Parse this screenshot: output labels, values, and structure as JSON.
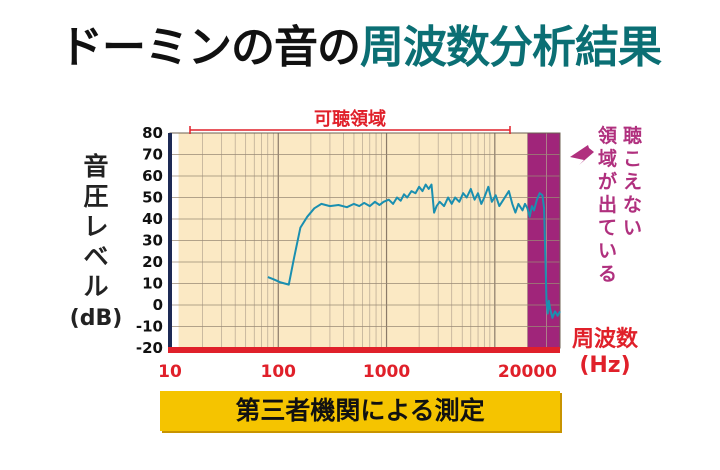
{
  "title": {
    "part1": "ドーミンの音の",
    "part2": "周波数分析結果"
  },
  "banner": "第三者機関による測定",
  "annotation": {
    "line1": "聴こえない",
    "line2": "領域が出ている"
  },
  "colors": {
    "audible_band": "#fbe9c4",
    "inaudible_band": "#a0257a",
    "line": "#1a8fb0",
    "axis_red": "#e0202a",
    "title_teal": "#0b6f74",
    "annotation": "#b0307e",
    "banner": "#f5c400"
  },
  "chart_data": {
    "type": "line",
    "x_scale": "log",
    "xlim": [
      10,
      40000
    ],
    "ylim": [
      -20,
      80
    ],
    "ylabel": "音圧レベル",
    "ylabel_unit": "(dB)",
    "xlabel_line1": "周波数",
    "xlabel_line2": "(Hz)",
    "x_ticks": [
      10,
      100,
      1000,
      20000
    ],
    "x_tick_labels": [
      "10",
      "100",
      "1000",
      "20000"
    ],
    "y_ticks": [
      -20,
      -10,
      0,
      10,
      20,
      30,
      40,
      50,
      60,
      70,
      80
    ],
    "audible_range_label": "可聴領域",
    "audible_range": [
      12,
      20000
    ],
    "series": [
      {
        "points": [
          [
            80,
            13
          ],
          [
            90,
            12
          ],
          [
            105,
            10.5
          ],
          [
            125,
            9.5
          ],
          [
            140,
            22
          ],
          [
            160,
            36
          ],
          [
            185,
            41
          ],
          [
            215,
            45
          ],
          [
            250,
            47
          ],
          [
            300,
            46
          ],
          [
            360,
            46.5
          ],
          [
            430,
            45.5
          ],
          [
            500,
            47
          ],
          [
            560,
            46
          ],
          [
            620,
            47.5
          ],
          [
            700,
            46
          ],
          [
            780,
            48
          ],
          [
            860,
            46.5
          ],
          [
            940,
            48
          ],
          [
            1050,
            49
          ],
          [
            1150,
            47
          ],
          [
            1250,
            50
          ],
          [
            1350,
            48.5
          ],
          [
            1450,
            51.5
          ],
          [
            1550,
            50
          ],
          [
            1700,
            53
          ],
          [
            1850,
            52
          ],
          [
            2000,
            55
          ],
          [
            2150,
            53
          ],
          [
            2300,
            56
          ],
          [
            2450,
            54
          ],
          [
            2600,
            56
          ],
          [
            2750,
            43
          ],
          [
            2900,
            46
          ],
          [
            3100,
            48
          ],
          [
            3400,
            46
          ],
          [
            3700,
            50
          ],
          [
            4000,
            47
          ],
          [
            4300,
            50
          ],
          [
            4700,
            48
          ],
          [
            5100,
            52
          ],
          [
            5500,
            50
          ],
          [
            6000,
            54
          ],
          [
            6500,
            49
          ],
          [
            7000,
            52
          ],
          [
            7500,
            47
          ],
          [
            8000,
            50
          ],
          [
            8700,
            55
          ],
          [
            9400,
            48
          ],
          [
            10200,
            51
          ],
          [
            11000,
            46
          ],
          [
            12000,
            49
          ],
          [
            13500,
            53
          ],
          [
            14500,
            47
          ],
          [
            15500,
            43
          ],
          [
            16500,
            47
          ],
          [
            18000,
            44
          ],
          [
            19000,
            47
          ],
          [
            20000,
            45
          ],
          [
            21000,
            41
          ],
          [
            22000,
            46
          ],
          [
            23000,
            44
          ],
          [
            24500,
            49
          ],
          [
            26000,
            52
          ],
          [
            27500,
            51
          ],
          [
            28500,
            45
          ],
          [
            29200,
            25
          ],
          [
            30000,
            2
          ],
          [
            30800,
            -4
          ],
          [
            31500,
            2
          ],
          [
            32500,
            -2
          ],
          [
            34000,
            -6
          ],
          [
            36000,
            -3
          ],
          [
            38000,
            -5
          ],
          [
            40000,
            -3
          ]
        ]
      }
    ]
  }
}
